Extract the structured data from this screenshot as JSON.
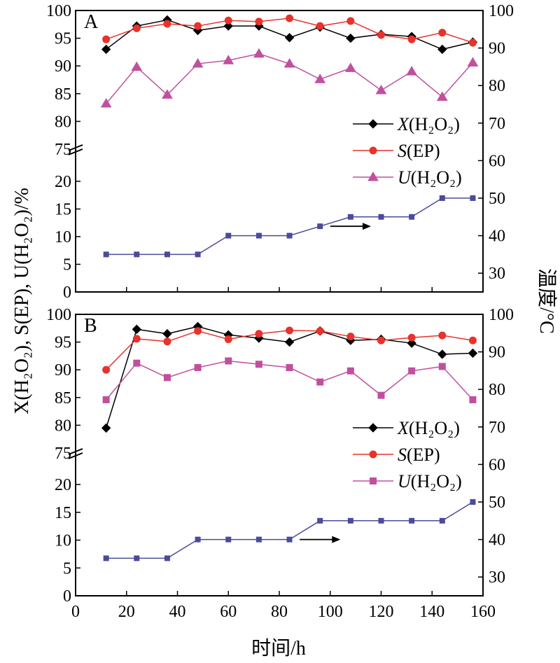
{
  "chart_data": [
    {
      "panel": "A",
      "type": "line",
      "x": [
        12,
        24,
        36,
        48,
        60,
        72,
        84,
        96,
        108,
        120,
        132,
        144,
        156
      ],
      "series": [
        {
          "name": "X(H2O2)",
          "axis": "left",
          "marker": "diamond",
          "color": "#000000",
          "values": [
            93.0,
            97.2,
            98.3,
            96.4,
            97.2,
            97.2,
            95.1,
            97.0,
            95.0,
            95.7,
            95.3,
            93.0,
            94.3
          ]
        },
        {
          "name": "S(EP)",
          "axis": "left",
          "marker": "circle",
          "color": "#e8322b",
          "values": [
            94.8,
            96.8,
            97.6,
            97.2,
            98.2,
            98.0,
            98.6,
            97.2,
            98.1,
            95.6,
            94.8,
            96.0,
            94.2
          ]
        },
        {
          "name": "U(H2O2)",
          "axis": "left",
          "marker": "triangle",
          "color": "#c0509f",
          "values": [
            83.2,
            89.8,
            84.8,
            90.4,
            91.0,
            92.2,
            90.4,
            87.6,
            89.6,
            85.6,
            89.0,
            84.4,
            90.6
          ]
        },
        {
          "name": "温度",
          "axis": "right",
          "marker": "square",
          "color": "#4b4b9a",
          "values": [
            35,
            35,
            35,
            35,
            40,
            40,
            40,
            42.5,
            45,
            45,
            45,
            50,
            50
          ]
        }
      ],
      "arrow": {
        "from_x": 100,
        "to_x": 116,
        "y_right": 42.5
      }
    },
    {
      "panel": "B",
      "type": "line",
      "x": [
        12,
        24,
        36,
        48,
        60,
        72,
        84,
        96,
        108,
        120,
        132,
        144,
        156
      ],
      "series": [
        {
          "name": "X(H2O2)",
          "axis": "left",
          "marker": "diamond",
          "color": "#000000",
          "values": [
            79.5,
            97.3,
            96.5,
            97.8,
            96.3,
            95.7,
            95.0,
            97.0,
            95.3,
            95.5,
            94.8,
            92.8,
            93.0
          ]
        },
        {
          "name": "S(EP)",
          "axis": "left",
          "marker": "circle",
          "color": "#e8322b",
          "values": [
            90.0,
            95.6,
            95.1,
            97.0,
            95.5,
            96.5,
            97.1,
            97.0,
            96.0,
            95.3,
            95.8,
            96.2,
            95.3
          ]
        },
        {
          "name": "U(H2O2)",
          "axis": "left",
          "marker": "square",
          "color": "#c0509f",
          "values": [
            84.6,
            91.2,
            88.6,
            90.4,
            91.6,
            91.0,
            90.4,
            87.8,
            89.8,
            85.4,
            89.8,
            90.6,
            84.6
          ]
        },
        {
          "name": "温度",
          "axis": "right",
          "marker": "square",
          "color": "#4b4b9a",
          "values": [
            35,
            35,
            35,
            40,
            40,
            40,
            40,
            45,
            45,
            45,
            45,
            45,
            50
          ]
        }
      ],
      "arrow": {
        "from_x": 88,
        "to_x": 104,
        "y_right": 40
      }
    }
  ],
  "panels": [
    {
      "letter": "A"
    },
    {
      "letter": "B"
    }
  ],
  "axes": {
    "xlim": [
      0,
      160
    ],
    "x_ticks": [
      "0",
      "20",
      "40",
      "60",
      "80",
      "100",
      "120",
      "140",
      "160"
    ],
    "x_tick_values": [
      0,
      20,
      40,
      60,
      80,
      100,
      120,
      140,
      160
    ],
    "left_upper_ticks": [
      "75",
      "80",
      "85",
      "90",
      "95",
      "100"
    ],
    "left_upper_values": [
      75,
      80,
      85,
      90,
      95,
      100
    ],
    "left_lower_ticks": [
      "0",
      "5",
      "10",
      "15",
      "20"
    ],
    "left_lower_values": [
      0,
      5,
      10,
      15,
      20
    ],
    "right_ticks_A": [
      "30",
      "40",
      "50",
      "60",
      "70",
      "80",
      "90",
      "100"
    ],
    "right_ticks_B": [
      "30",
      "40",
      "50",
      "60",
      "70",
      "80",
      "90",
      "100"
    ],
    "right_tick_values": [
      30,
      40,
      50,
      60,
      70,
      80,
      90,
      100
    ],
    "right_range": [
      25,
      100
    ],
    "xlabel": "时间/h",
    "ylabel_left": "X(H₂O₂), S(EP), U(H₂O₂)/%",
    "ylabel_right": "温度/°C"
  },
  "legend": {
    "A": [
      {
        "italic": "X",
        "rest": "(H₂O₂)",
        "marker": "diamond",
        "color": "#000000"
      },
      {
        "italic": "S",
        "rest": "(EP)",
        "marker": "circle",
        "color": "#e8322b"
      },
      {
        "italic": "U",
        "rest": "(H₂O₂)",
        "marker": "triangle",
        "color": "#c0509f"
      }
    ],
    "B": [
      {
        "italic": "X",
        "rest": "(H₂O₂)",
        "marker": "diamond",
        "color": "#000000"
      },
      {
        "italic": "S",
        "rest": "(EP)",
        "marker": "circle",
        "color": "#e8322b"
      },
      {
        "italic": "U",
        "rest": "(H₂O₂)",
        "marker": "square",
        "color": "#c0509f"
      }
    ]
  }
}
